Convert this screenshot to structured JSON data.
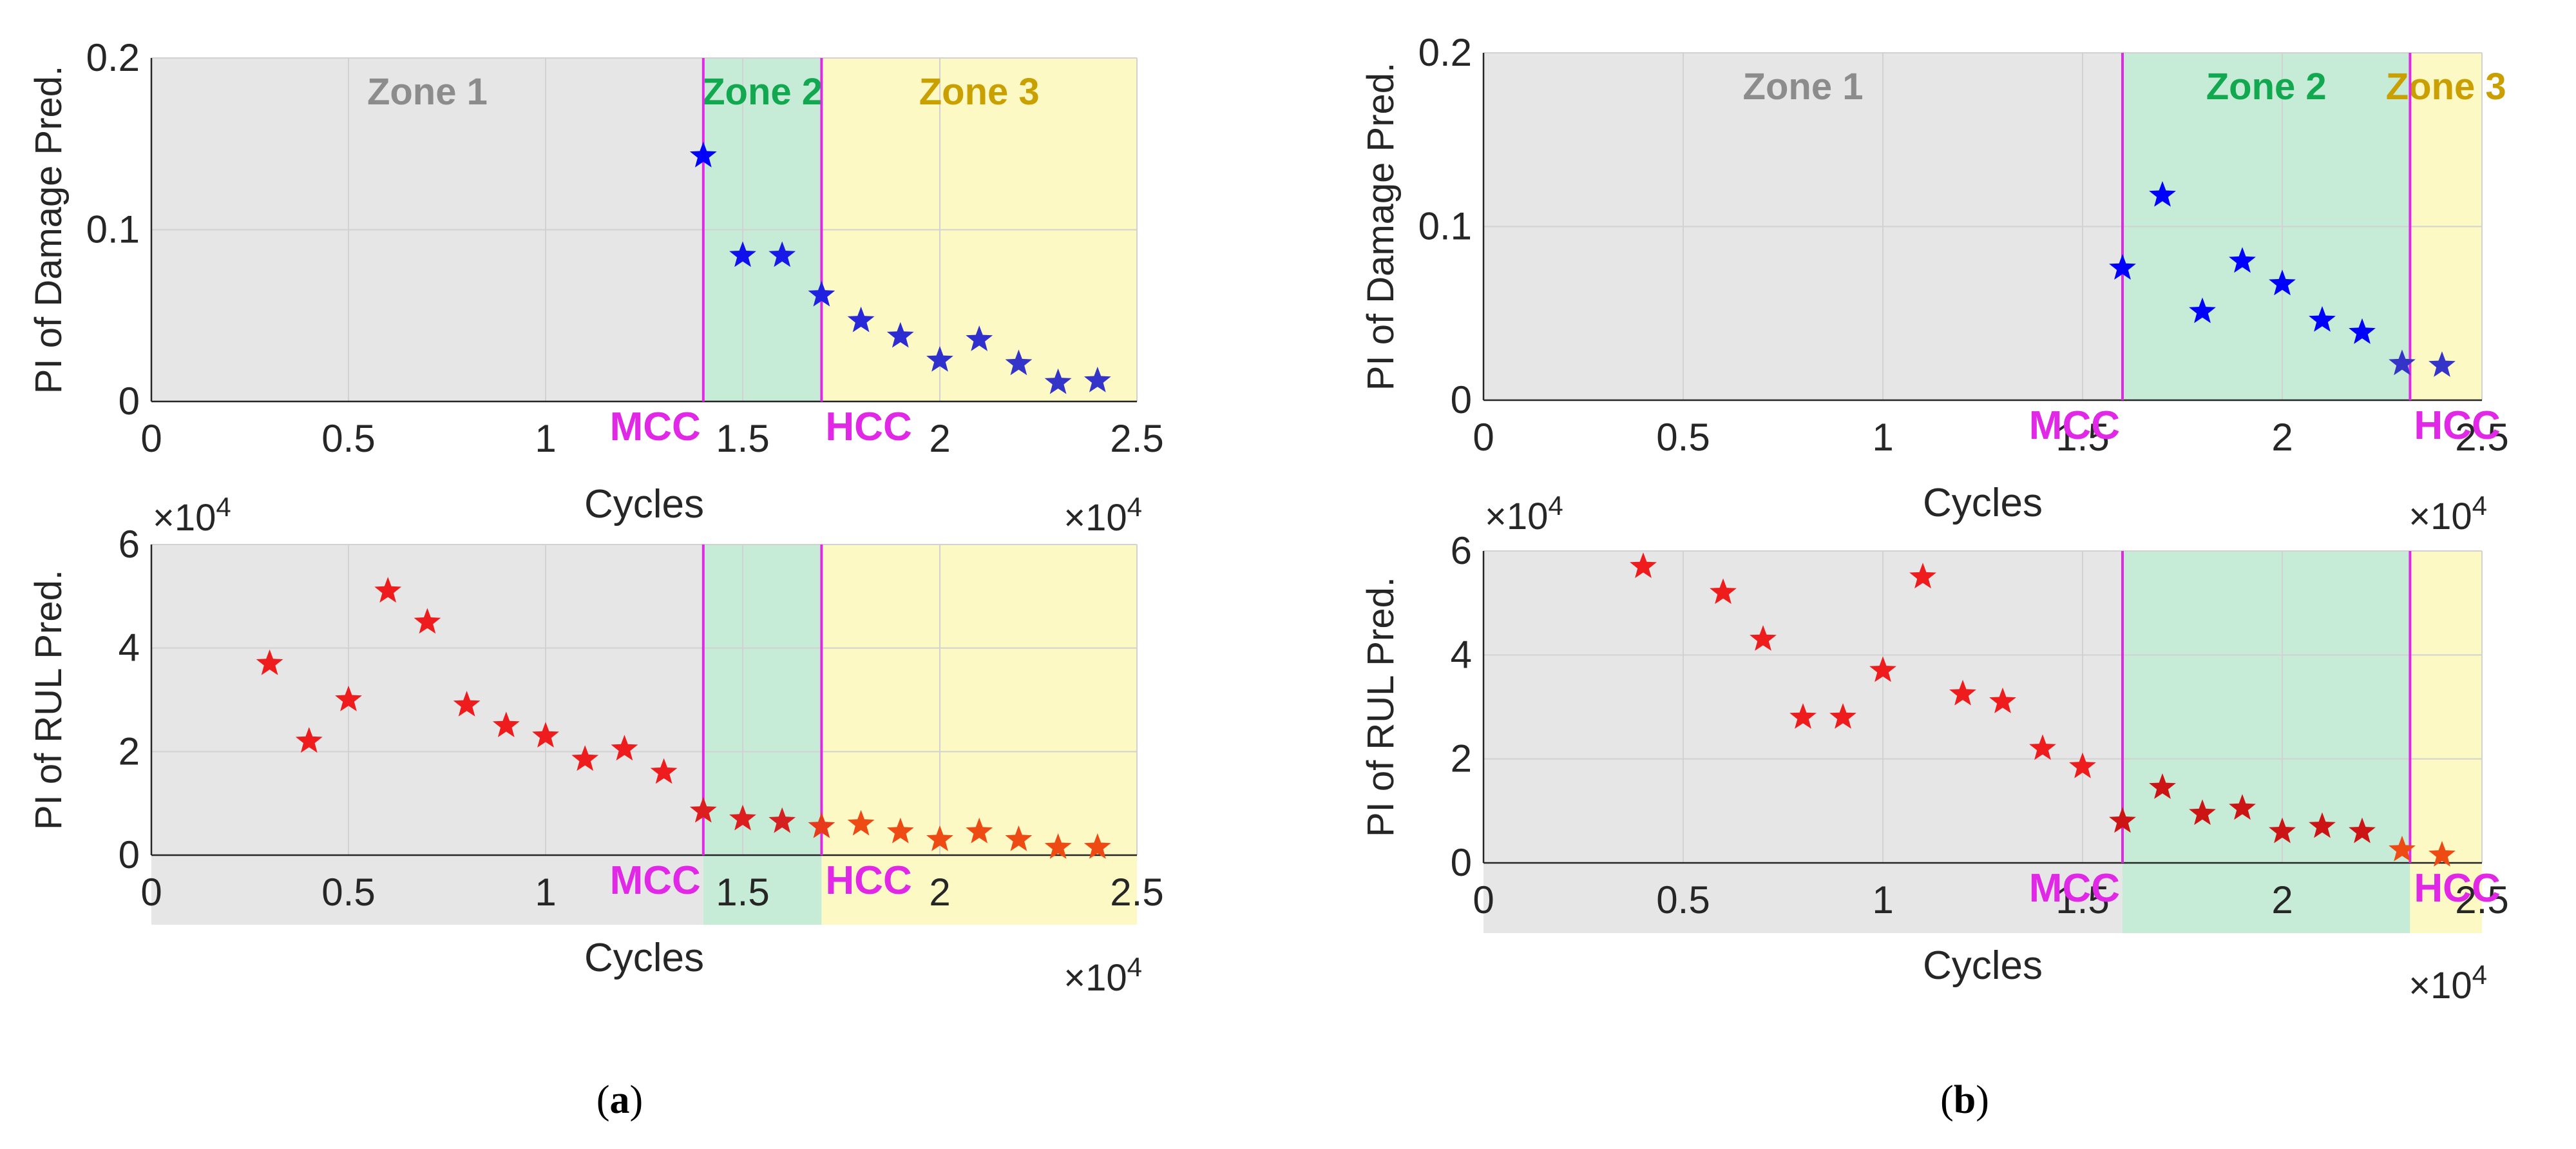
{
  "figure": {
    "panels": [
      {
        "id": "a",
        "label_open": "(",
        "label_letter": "a",
        "label_close": ")",
        "zone_bounds": [
          14000,
          17000
        ],
        "zones": [
          {
            "name": "Zone 1",
            "color": "#8c8c8c",
            "fill": "#e6e6e6"
          },
          {
            "name": "Zone 2",
            "color": "#12a84f",
            "fill": "#c6ecd7"
          },
          {
            "name": "Zone 3",
            "color": "#c9a000",
            "fill": "#fcf9c4"
          }
        ],
        "markers": [
          "MCC",
          "HCC"
        ],
        "marker_color": "#e128e6",
        "charts": [
          {
            "type": "scatter",
            "ylabel": "PI of Damage Pred.",
            "xlabel": "Cycles",
            "xlim": [
              0,
              25000
            ],
            "ylim": [
              0,
              0.2
            ],
            "xticks": [
              "0",
              "0.5",
              "1",
              "1.5",
              "2",
              "2.5"
            ],
            "yticks": [
              "0",
              "0.1",
              "0.2"
            ],
            "xexp": "×10",
            "xexp_power": "4",
            "yexp": "×10",
            "yexp_power": "4",
            "series": [
              {
                "name": "damage",
                "marker": "star",
                "x": [
                  14000,
                  15000,
                  16000,
                  17000,
                  18000,
                  19000,
                  20000,
                  21000,
                  22000,
                  23000,
                  24000
                ],
                "y": [
                  0.143,
                  0.085,
                  0.085,
                  0.062,
                  0.047,
                  0.038,
                  0.024,
                  0.036,
                  0.022,
                  0.011,
                  0.012
                ],
                "colors": [
                  "#0000ff",
                  "#1010ef",
                  "#1818e8",
                  "#2020e0",
                  "#2828d8",
                  "#2c2cd2",
                  "#3030cc",
                  "#3030cc",
                  "#3434c8",
                  "#3434c8",
                  "#3434c8"
                ]
              }
            ]
          },
          {
            "type": "scatter",
            "ylabel": "PI of RUL Pred.",
            "xlabel": "Cycles",
            "xlim": [
              0,
              25000
            ],
            "ylim": [
              0,
              6
            ],
            "xticks": [
              "0",
              "0.5",
              "1",
              "1.5",
              "2",
              "2.5"
            ],
            "yticks": [
              "0",
              "2",
              "4",
              "6"
            ],
            "xexp": "×10",
            "xexp_power": "4",
            "series": [
              {
                "name": "rul",
                "marker": "star",
                "x": [
                  3000,
                  4000,
                  5000,
                  6000,
                  7000,
                  8000,
                  9000,
                  10000,
                  11000,
                  12000,
                  13000,
                  14000,
                  15000,
                  16000,
                  17000,
                  18000,
                  19000,
                  20000,
                  21000,
                  22000,
                  23000,
                  24000
                ],
                "y": [
                  3.7,
                  2.2,
                  3.0,
                  5.1,
                  4.5,
                  2.9,
                  2.5,
                  2.3,
                  1.85,
                  2.05,
                  1.6,
                  0.85,
                  0.7,
                  0.65,
                  0.55,
                  0.6,
                  0.45,
                  0.3,
                  0.45,
                  0.3,
                  0.15,
                  0.15
                ],
                "colors": [
                  "#ee1c1c",
                  "#ee1c1c",
                  "#ee1c1c",
                  "#ee1c1c",
                  "#ee1c1c",
                  "#ee1c1c",
                  "#ee1c1c",
                  "#ee1c1c",
                  "#ee1c1c",
                  "#ee1c1c",
                  "#ee1c1c",
                  "#dd1e1e",
                  "#dd1e1e",
                  "#d42020",
                  "#e63a1a",
                  "#ee4a14",
                  "#ee4a14",
                  "#ee4a14",
                  "#ee4a14",
                  "#ee4a14",
                  "#ee4a14",
                  "#ee4a14"
                ]
              }
            ]
          }
        ]
      },
      {
        "id": "b",
        "label_open": "(",
        "label_letter": "b",
        "label_close": ")",
        "zone_bounds": [
          16000,
          23200
        ],
        "zones": [
          {
            "name": "Zone 1",
            "color": "#8c8c8c",
            "fill": "#e6e6e6"
          },
          {
            "name": "Zone 2",
            "color": "#12a84f",
            "fill": "#c6ecd7"
          },
          {
            "name": "Zone 3",
            "color": "#c9a000",
            "fill": "#fcf9c4"
          }
        ],
        "markers": [
          "MCC",
          "HCC"
        ],
        "marker_color": "#e128e6",
        "charts": [
          {
            "type": "scatter",
            "ylabel": "PI of Damage Pred.",
            "xlabel": "Cycles",
            "xlim": [
              0,
              25000
            ],
            "ylim": [
              0,
              0.2
            ],
            "xticks": [
              "0",
              "0.5",
              "1",
              "1.5",
              "2",
              "2.5"
            ],
            "yticks": [
              "0",
              "0.1",
              "0.2"
            ],
            "xexp": "×10",
            "xexp_power": "4",
            "yexp": "×10",
            "yexp_power": "4",
            "series": [
              {
                "name": "damage",
                "marker": "star",
                "x": [
                  16000,
                  17000,
                  18000,
                  19000,
                  20000,
                  21000,
                  22000,
                  23000,
                  24000
                ],
                "y": [
                  0.076,
                  0.118,
                  0.051,
                  0.08,
                  0.067,
                  0.046,
                  0.039,
                  0.021,
                  0.02
                ],
                "colors": [
                  "#0000ff",
                  "#0000ff",
                  "#0000ff",
                  "#0000ff",
                  "#0000ff",
                  "#0000ff",
                  "#0000ff",
                  "#3434c8",
                  "#3434c8"
                ]
              }
            ]
          },
          {
            "type": "scatter",
            "ylabel": "PI of RUL Pred.",
            "xlabel": "Cycles",
            "xlim": [
              0,
              25000
            ],
            "ylim": [
              0,
              6
            ],
            "xticks": [
              "0",
              "0.5",
              "1",
              "1.5",
              "2",
              "2.5"
            ],
            "yticks": [
              "0",
              "2",
              "4",
              "6"
            ],
            "xexp": "×10",
            "xexp_power": "4",
            "series": [
              {
                "name": "rul",
                "marker": "star",
                "x": [
                  4000,
                  6000,
                  7000,
                  8000,
                  9000,
                  10000,
                  11000,
                  12000,
                  13000,
                  14000,
                  15000,
                  16000,
                  17000,
                  18000,
                  19000,
                  20000,
                  21000,
                  22000,
                  23000,
                  24000
                ],
                "y": [
                  5.7,
                  5.2,
                  4.3,
                  2.8,
                  2.8,
                  3.7,
                  5.5,
                  3.25,
                  3.1,
                  2.2,
                  1.85,
                  0.8,
                  1.45,
                  0.95,
                  1.05,
                  0.6,
                  0.7,
                  0.6,
                  0.25,
                  0.15
                ],
                "colors": [
                  "#ee1c1c",
                  "#ee1c1c",
                  "#ee1c1c",
                  "#ee1c1c",
                  "#ee1c1c",
                  "#ee1c1c",
                  "#ee1c1c",
                  "#ee1c1c",
                  "#ee1c1c",
                  "#ee1c1c",
                  "#ee1c1c",
                  "#cc1414",
                  "#cc1414",
                  "#cc1414",
                  "#cc1414",
                  "#cc1414",
                  "#cc1414",
                  "#cc1414",
                  "#ee4a14",
                  "#ee4a14"
                ]
              }
            ]
          }
        ]
      }
    ]
  },
  "chart_data": [
    {
      "type": "scatter",
      "panel": "a",
      "title": "",
      "xlabel": "Cycles",
      "ylabel": "PI of Damage Pred.",
      "xlim": [
        0,
        25000
      ],
      "ylim": [
        0,
        0.2
      ],
      "x": [
        14000,
        15000,
        16000,
        17000,
        18000,
        19000,
        20000,
        21000,
        22000,
        23000,
        24000
      ],
      "series": [
        {
          "name": "PI of Damage Pred.",
          "values": [
            0.143,
            0.085,
            0.085,
            0.062,
            0.047,
            0.038,
            0.024,
            0.036,
            0.022,
            0.011,
            0.012
          ]
        }
      ],
      "annotations": [
        "Zone 1",
        "Zone 2",
        "Zone 3",
        "MCC",
        "HCC"
      ]
    },
    {
      "type": "scatter",
      "panel": "a",
      "title": "",
      "xlabel": "Cycles",
      "ylabel": "PI of RUL Pred.",
      "xlim": [
        0,
        25000
      ],
      "ylim": [
        0,
        6
      ],
      "x": [
        3000,
        4000,
        5000,
        6000,
        7000,
        8000,
        9000,
        10000,
        11000,
        12000,
        13000,
        14000,
        15000,
        16000,
        17000,
        18000,
        19000,
        20000,
        21000,
        22000,
        23000,
        24000
      ],
      "series": [
        {
          "name": "PI of RUL Pred.",
          "values": [
            3.7,
            2.2,
            3.0,
            5.1,
            4.5,
            2.9,
            2.5,
            2.3,
            1.85,
            2.05,
            1.6,
            0.85,
            0.7,
            0.65,
            0.55,
            0.6,
            0.45,
            0.3,
            0.45,
            0.3,
            0.15,
            0.15
          ]
        }
      ],
      "annotations": [
        "MCC",
        "HCC"
      ]
    },
    {
      "type": "scatter",
      "panel": "b",
      "title": "",
      "xlabel": "Cycles",
      "ylabel": "PI of Damage Pred.",
      "xlim": [
        0,
        25000
      ],
      "ylim": [
        0,
        0.2
      ],
      "x": [
        16000,
        17000,
        18000,
        19000,
        20000,
        21000,
        22000,
        23000,
        24000
      ],
      "series": [
        {
          "name": "PI of Damage Pred.",
          "values": [
            0.076,
            0.118,
            0.051,
            0.08,
            0.067,
            0.046,
            0.039,
            0.021,
            0.02
          ]
        }
      ],
      "annotations": [
        "Zone 1",
        "Zone 2",
        "Zone 3",
        "MCC",
        "HCC"
      ]
    },
    {
      "type": "scatter",
      "panel": "b",
      "title": "",
      "xlabel": "Cycles",
      "ylabel": "PI of RUL Pred.",
      "xlim": [
        0,
        25000
      ],
      "ylim": [
        0,
        6
      ],
      "x": [
        4000,
        6000,
        7000,
        8000,
        9000,
        10000,
        11000,
        12000,
        13000,
        14000,
        15000,
        16000,
        17000,
        18000,
        19000,
        20000,
        21000,
        22000,
        23000,
        24000
      ],
      "series": [
        {
          "name": "PI of RUL Pred.",
          "values": [
            5.7,
            5.2,
            4.3,
            2.8,
            2.8,
            3.7,
            5.5,
            3.25,
            3.1,
            2.2,
            1.85,
            0.8,
            1.45,
            0.95,
            1.05,
            0.6,
            0.7,
            0.6,
            0.25,
            0.15
          ]
        }
      ],
      "annotations": [
        "MCC",
        "HCC"
      ]
    }
  ]
}
